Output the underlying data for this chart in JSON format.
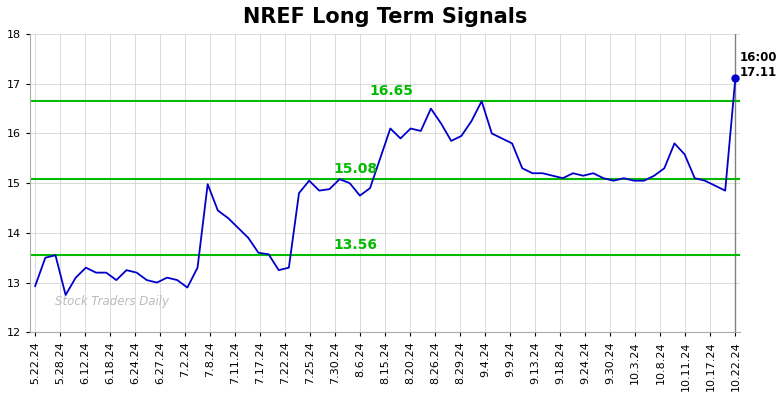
{
  "title": "NREF Long Term Signals",
  "x_labels": [
    "5.22.24",
    "5.28.24",
    "6.12.24",
    "6.18.24",
    "6.24.24",
    "6.27.24",
    "7.2.24",
    "7.8.24",
    "7.11.24",
    "7.17.24",
    "7.22.24",
    "7.25.24",
    "7.30.24",
    "8.6.24",
    "8.15.24",
    "8.20.24",
    "8.26.24",
    "8.29.24",
    "9.4.24",
    "9.9.24",
    "9.13.24",
    "9.18.24",
    "9.24.24",
    "9.30.24",
    "10.3.24",
    "10.8.24",
    "10.11.24",
    "10.17.24",
    "10.22.24"
  ],
  "y_values": [
    12.93,
    13.5,
    13.55,
    12.75,
    13.1,
    13.3,
    13.2,
    13.2,
    13.05,
    13.25,
    13.2,
    13.05,
    13.0,
    13.1,
    13.05,
    12.9,
    13.3,
    14.98,
    14.45,
    14.3,
    14.1,
    13.9,
    13.6,
    13.57,
    13.25,
    13.3,
    14.8,
    15.05,
    14.85,
    14.88,
    15.08,
    15.0,
    14.75,
    14.9,
    15.5,
    16.1,
    15.9,
    16.1,
    16.05,
    16.5,
    16.2,
    15.85,
    15.95,
    16.25,
    16.65,
    16.0,
    15.9,
    15.8,
    15.3,
    15.2,
    15.2,
    15.15,
    15.1,
    15.2,
    15.15,
    15.2,
    15.1,
    15.05,
    15.1,
    15.05,
    15.05,
    15.15,
    15.3,
    15.8,
    15.58,
    15.1,
    15.05,
    14.95,
    14.85,
    17.11
  ],
  "hlines": [
    16.65,
    15.08,
    13.56
  ],
  "hline_color": "#00bb00",
  "hline_labels": [
    "16.65",
    "15.08",
    "13.56"
  ],
  "line_color": "#0000cc",
  "last_value": 17.11,
  "watermark": "Stock Traders Daily",
  "ylim": [
    12,
    18
  ],
  "yticks": [
    12,
    13,
    14,
    15,
    16,
    17,
    18
  ],
  "bg_color": "#ffffff",
  "grid_color": "#cccccc",
  "title_fontsize": 15,
  "tick_fontsize": 8.0
}
